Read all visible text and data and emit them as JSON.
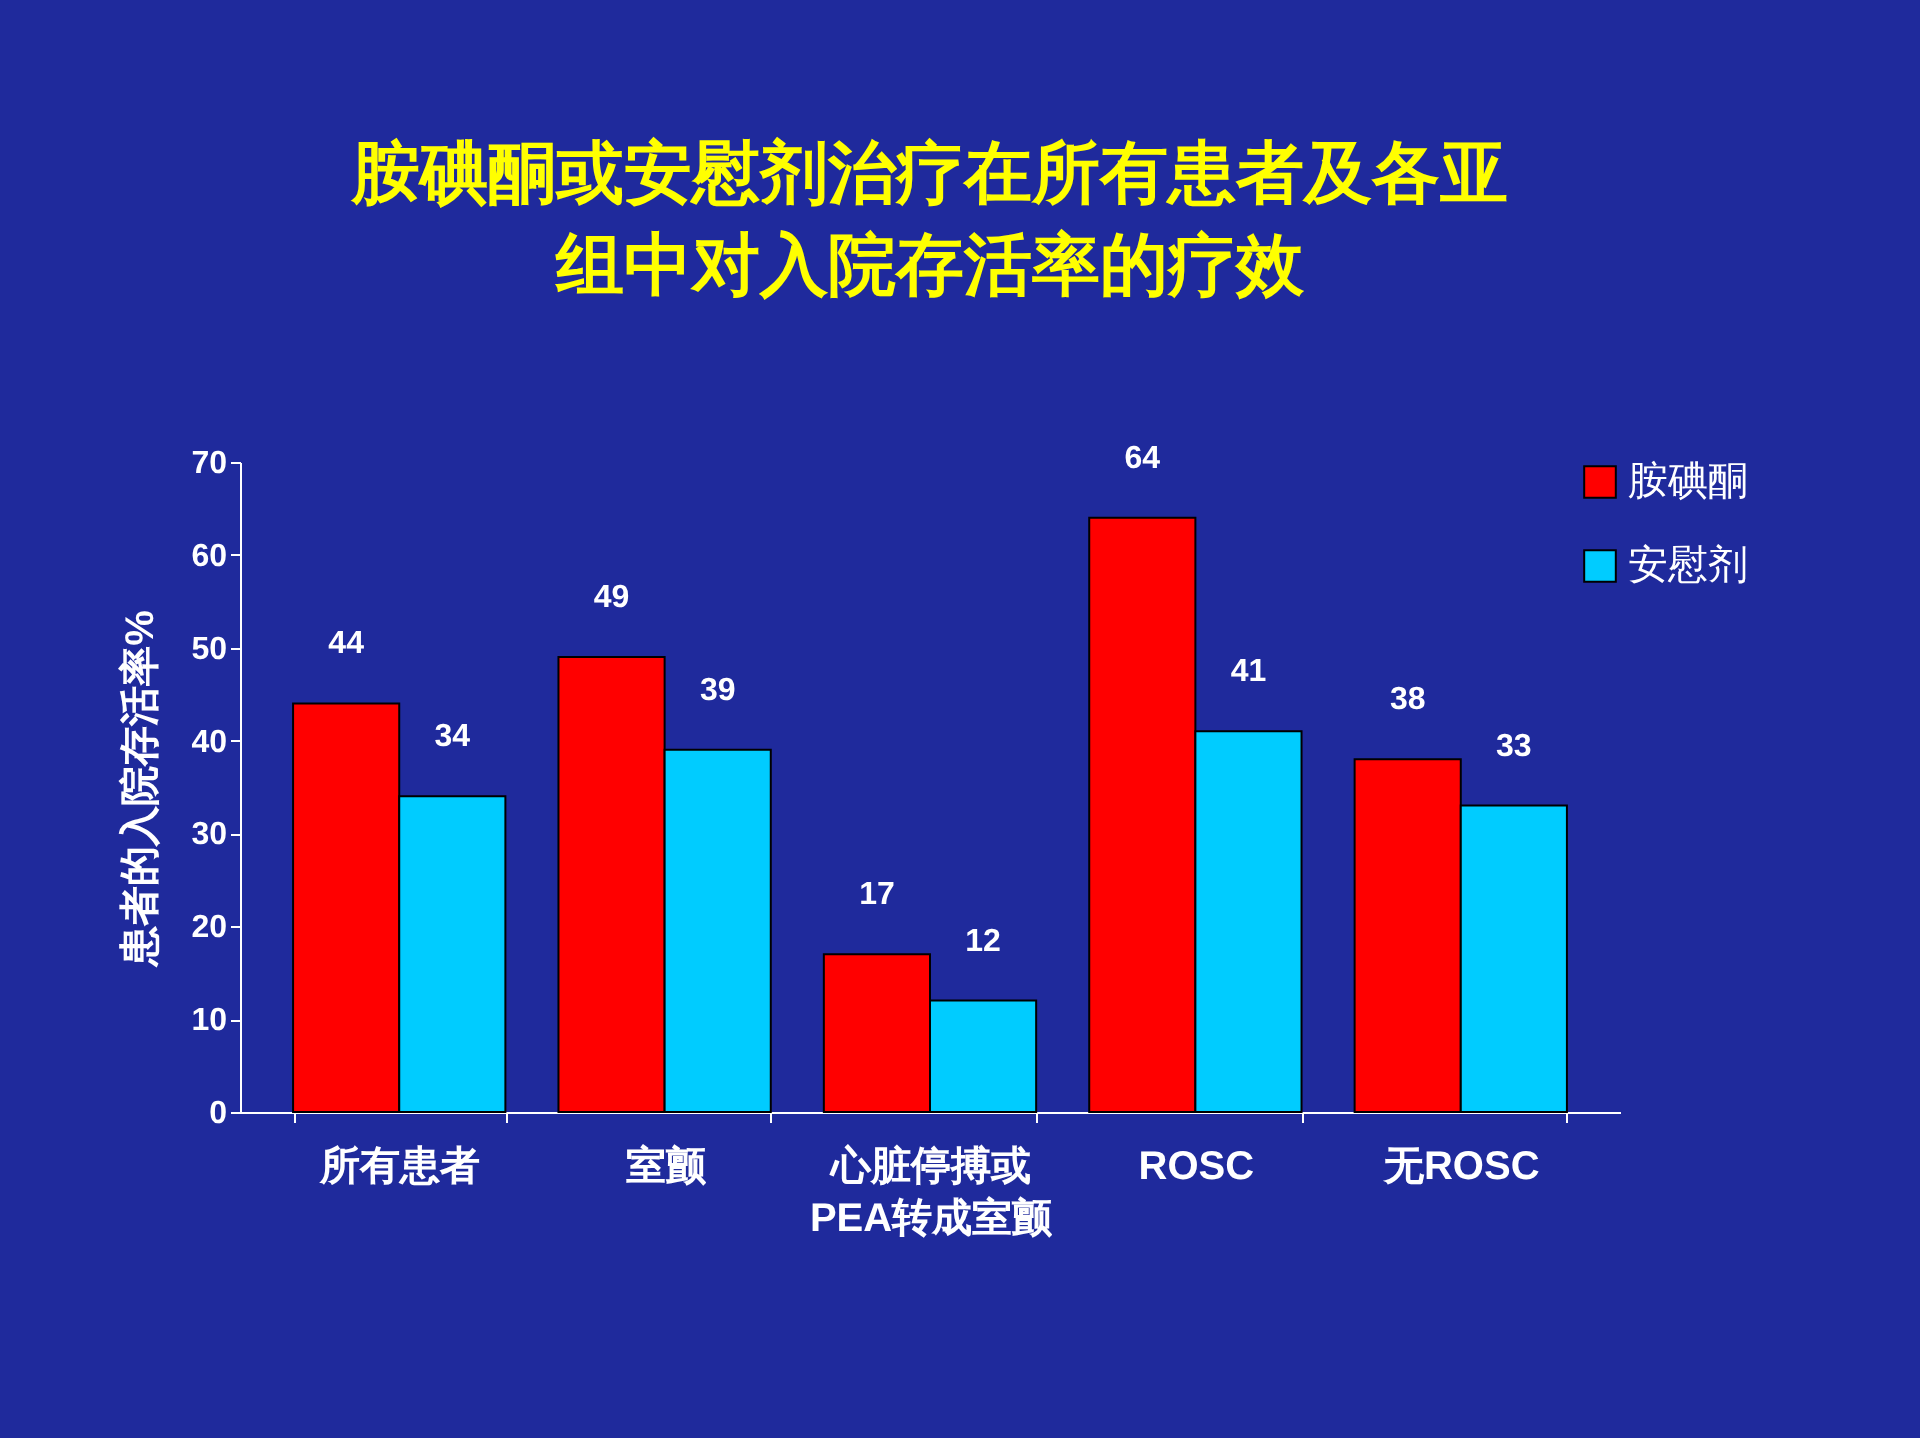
{
  "chart_data": {
    "type": "bar",
    "title": [
      "胺碘酮或安慰剂治疗在所有患者及各亚",
      "组中对入院存活率的疗效"
    ],
    "ylabel": "患者的入院存活率%",
    "categories": [
      "所有患者",
      "室颤",
      "心脏停搏或\nPEA转成室颤",
      "ROSC",
      "无ROSC"
    ],
    "series": [
      {
        "name": "胺碘酮",
        "color": "#ff0000",
        "values": [
          44,
          49,
          17,
          64,
          38
        ]
      },
      {
        "name": "安慰剂",
        "color": "#00ccff",
        "values": [
          34,
          39,
          12,
          41,
          33
        ]
      }
    ],
    "ylim": [
      0,
      70
    ],
    "yticks": [
      0,
      10,
      20,
      30,
      40,
      50,
      60,
      70
    ],
    "data_labels": true,
    "grid": false,
    "legend": "right"
  }
}
